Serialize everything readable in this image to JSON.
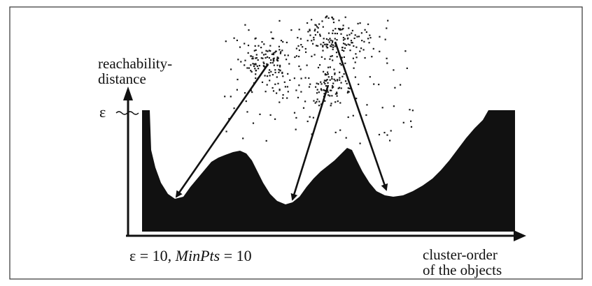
{
  "figure": {
    "y_axis_label_line1": "reachability-",
    "y_axis_label_line2": "distance",
    "epsilon_symbol": "ε",
    "params_prefix": "ε = 10, ",
    "params_minpts": "MinPts",
    "params_suffix": " = 10",
    "x_axis_label_line1": "cluster-order",
    "x_axis_label_line2": "of the objects"
  },
  "colors": {
    "ink": "#111111",
    "background": "#ffffff"
  }
}
